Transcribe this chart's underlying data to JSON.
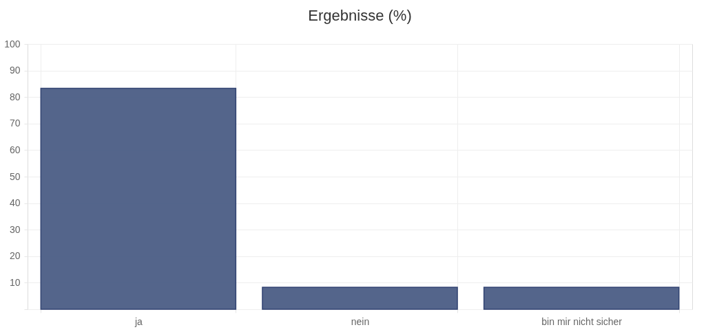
{
  "chart_data": {
    "type": "bar",
    "title": "Ergebnisse (%)",
    "categories": [
      "ja",
      "nein",
      "bin mir nicht sicher"
    ],
    "values": [
      83.3,
      8.3,
      8.3
    ],
    "color": "#4f6188",
    "ylim": [
      0,
      100
    ],
    "yticks": [
      {
        "value": 0,
        "label": null
      },
      10,
      20,
      30,
      40,
      50,
      60,
      70,
      80,
      90,
      100
    ],
    "grid": true
  }
}
